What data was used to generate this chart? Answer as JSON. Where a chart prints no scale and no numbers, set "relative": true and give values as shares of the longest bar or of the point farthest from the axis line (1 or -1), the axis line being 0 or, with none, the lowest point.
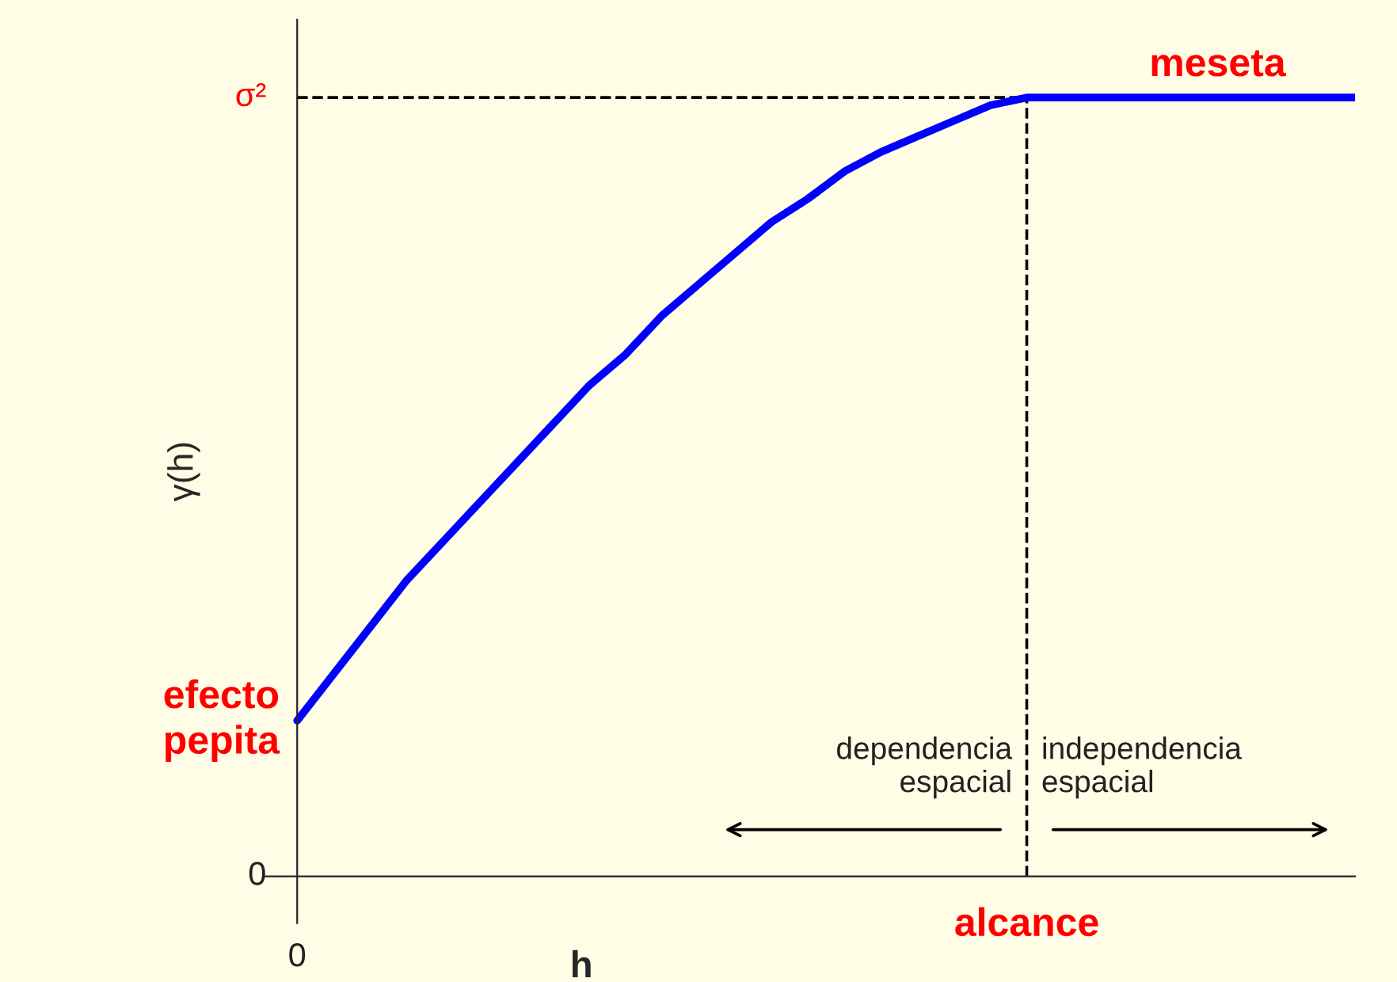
{
  "chart_data": {
    "type": "line",
    "relative": true,
    "xlabel": "h",
    "ylabel": "γ(h)",
    "categories": [
      null,
      null,
      null,
      null,
      null,
      null,
      null,
      null,
      null,
      null,
      null,
      null,
      null,
      null,
      null,
      null,
      null,
      null,
      null,
      null,
      null,
      null,
      null,
      null,
      null,
      null,
      null,
      null,
      null,
      null
    ],
    "series": [
      {
        "color": "#0000ff",
        "values": [
          0.2,
          0.26,
          0.32,
          0.38,
          0.43,
          0.48,
          0.53,
          0.58,
          0.63,
          0.67,
          0.72,
          0.76,
          0.8,
          0.84,
          0.87,
          0.905,
          0.93,
          0.95,
          0.97,
          0.99,
          1.0,
          1.0,
          1.0,
          1.0,
          1.0,
          1.0,
          1.0,
          1.0,
          1.0,
          1.0
        ]
      }
    ],
    "ref_lines": [
      {
        "axis": "y",
        "value": 1,
        "line_style": "dashed",
        "color": "#000000"
      }
    ],
    "annotations": [
      "efecto\npepita",
      "meseta",
      "alcance",
      "0",
      "σ²",
      "0",
      "dependencia\nespacial",
      "independencia\nespacial"
    ],
    "legend": false,
    "marker": "none",
    "line_style": "solid"
  }
}
